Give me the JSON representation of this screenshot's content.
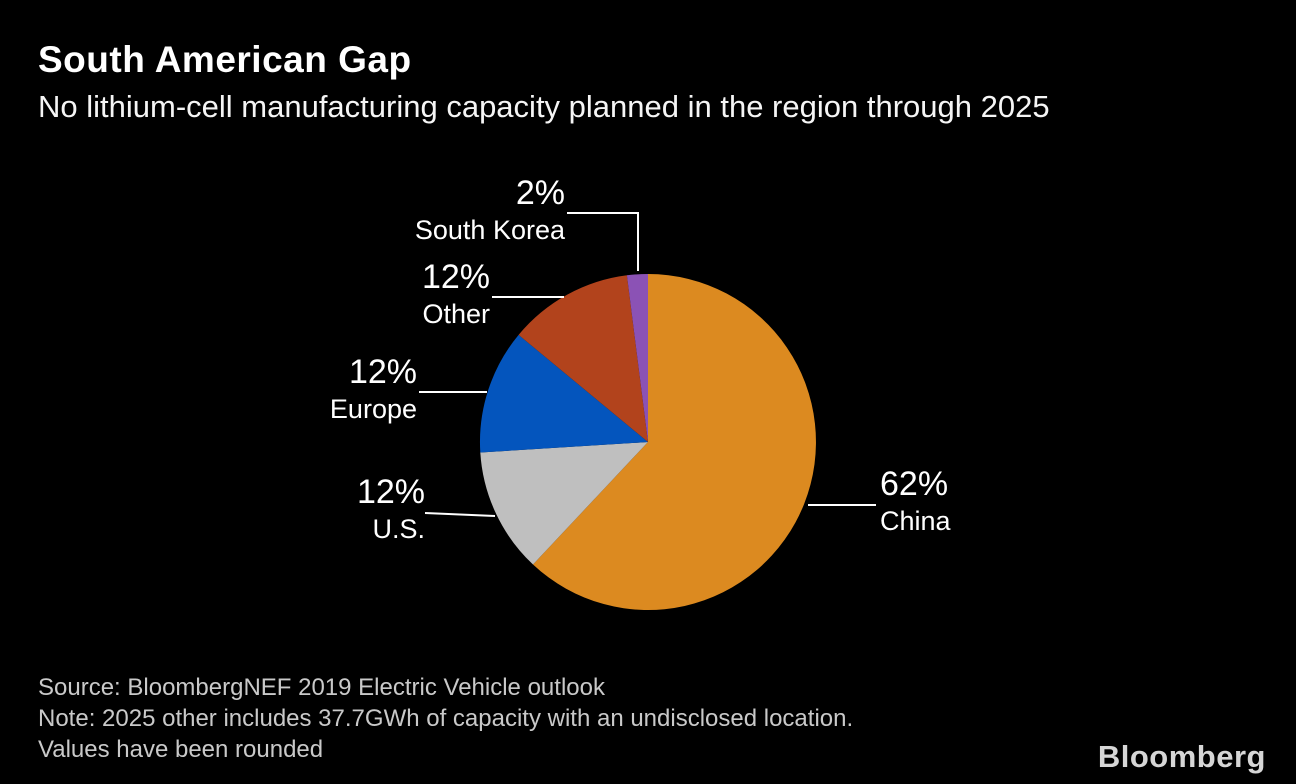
{
  "header": {
    "title": "South American Gap",
    "subtitle": "No lithium-cell manufacturing capacity planned in the region through 2025"
  },
  "chart_data": {
    "type": "pie",
    "title": "South American Gap",
    "subtitle": "No lithium-cell manufacturing capacity planned in the region through 2025",
    "unit": "%",
    "start_angle_deg": -90,
    "direction": "clockwise",
    "legend_position": "callout-labels",
    "slices": [
      {
        "label": "China",
        "value": 62,
        "pct_label": "62%",
        "color": "#DC8A20"
      },
      {
        "label": "U.S.",
        "value": 12,
        "pct_label": "12%",
        "color": "#BFBFBF"
      },
      {
        "label": "Europe",
        "value": 12,
        "pct_label": "12%",
        "color": "#0455BD"
      },
      {
        "label": "Other",
        "value": 12,
        "pct_label": "12%",
        "color": "#B2431C"
      },
      {
        "label": "South Korea",
        "value": 2,
        "pct_label": "2%",
        "color": "#8B52B5"
      }
    ]
  },
  "footer": {
    "source": "Source: BloombergNEF 2019 Electric Vehicle outlook",
    "note": "Note: 2025 other includes 37.7GWh of capacity with an undisclosed location.",
    "note2": "Values have been rounded",
    "brand": "Bloomberg"
  },
  "colors": {
    "background": "#000000",
    "title_text": "#FFFFFF",
    "label_text": "#FFFFFF",
    "footer_text": "#C9C9C9",
    "brand_text": "#D6D6D6",
    "leader_line": "#FFFFFF"
  }
}
